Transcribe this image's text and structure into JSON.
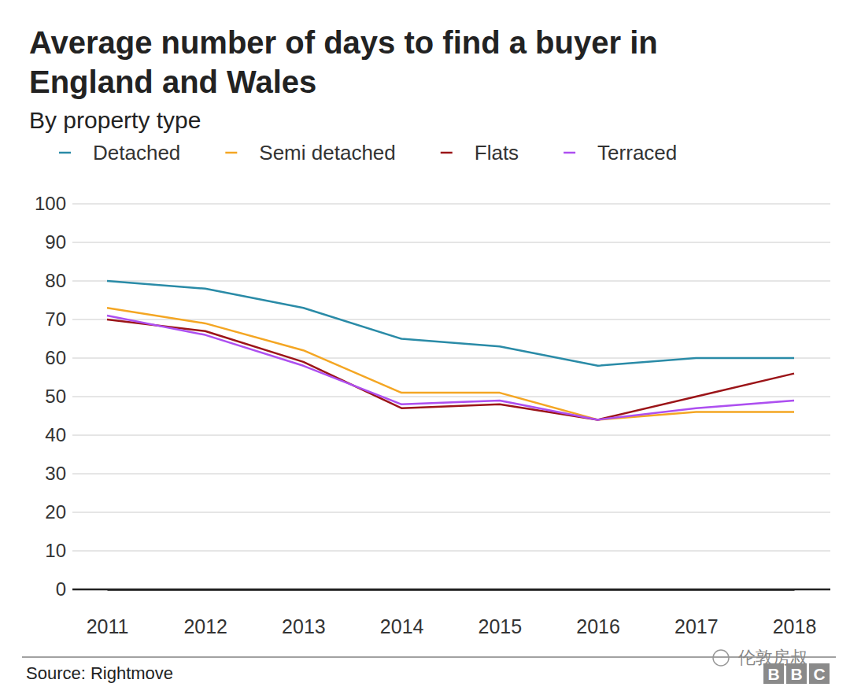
{
  "chart_data": {
    "type": "line",
    "title": "Average number of days to find a buyer in England and Wales",
    "subtitle": "By property type",
    "source": "Source: Rightmove",
    "annotations": [
      "伦敦房叔",
      "BBC"
    ],
    "x": [
      2011,
      2012,
      2013,
      2014,
      2015,
      2016,
      2017,
      2018
    ],
    "xlim": [
      2011,
      2018
    ],
    "xticks": [
      2011,
      2012,
      2013,
      2014,
      2015,
      2016,
      2017,
      2018
    ],
    "ylim": [
      0,
      100
    ],
    "yticks": [
      0,
      10,
      20,
      30,
      40,
      50,
      60,
      70,
      80,
      90,
      100
    ],
    "grid": true,
    "legend": "top",
    "series": [
      {
        "name": "Detached",
        "color": "#2a8ba7",
        "values": [
          80,
          78,
          73,
          65,
          63,
          58,
          60,
          60
        ]
      },
      {
        "name": "Semi detached",
        "color": "#f4a623",
        "values": [
          73,
          69,
          62,
          51,
          51,
          44,
          46,
          46
        ]
      },
      {
        "name": "Flats",
        "color": "#9b1418",
        "values": [
          70,
          67,
          59,
          47,
          48,
          44,
          50,
          56
        ]
      },
      {
        "name": "Terraced",
        "color": "#ad4ff0",
        "values": [
          71,
          66,
          58,
          48,
          49,
          44,
          47,
          49
        ]
      }
    ]
  }
}
